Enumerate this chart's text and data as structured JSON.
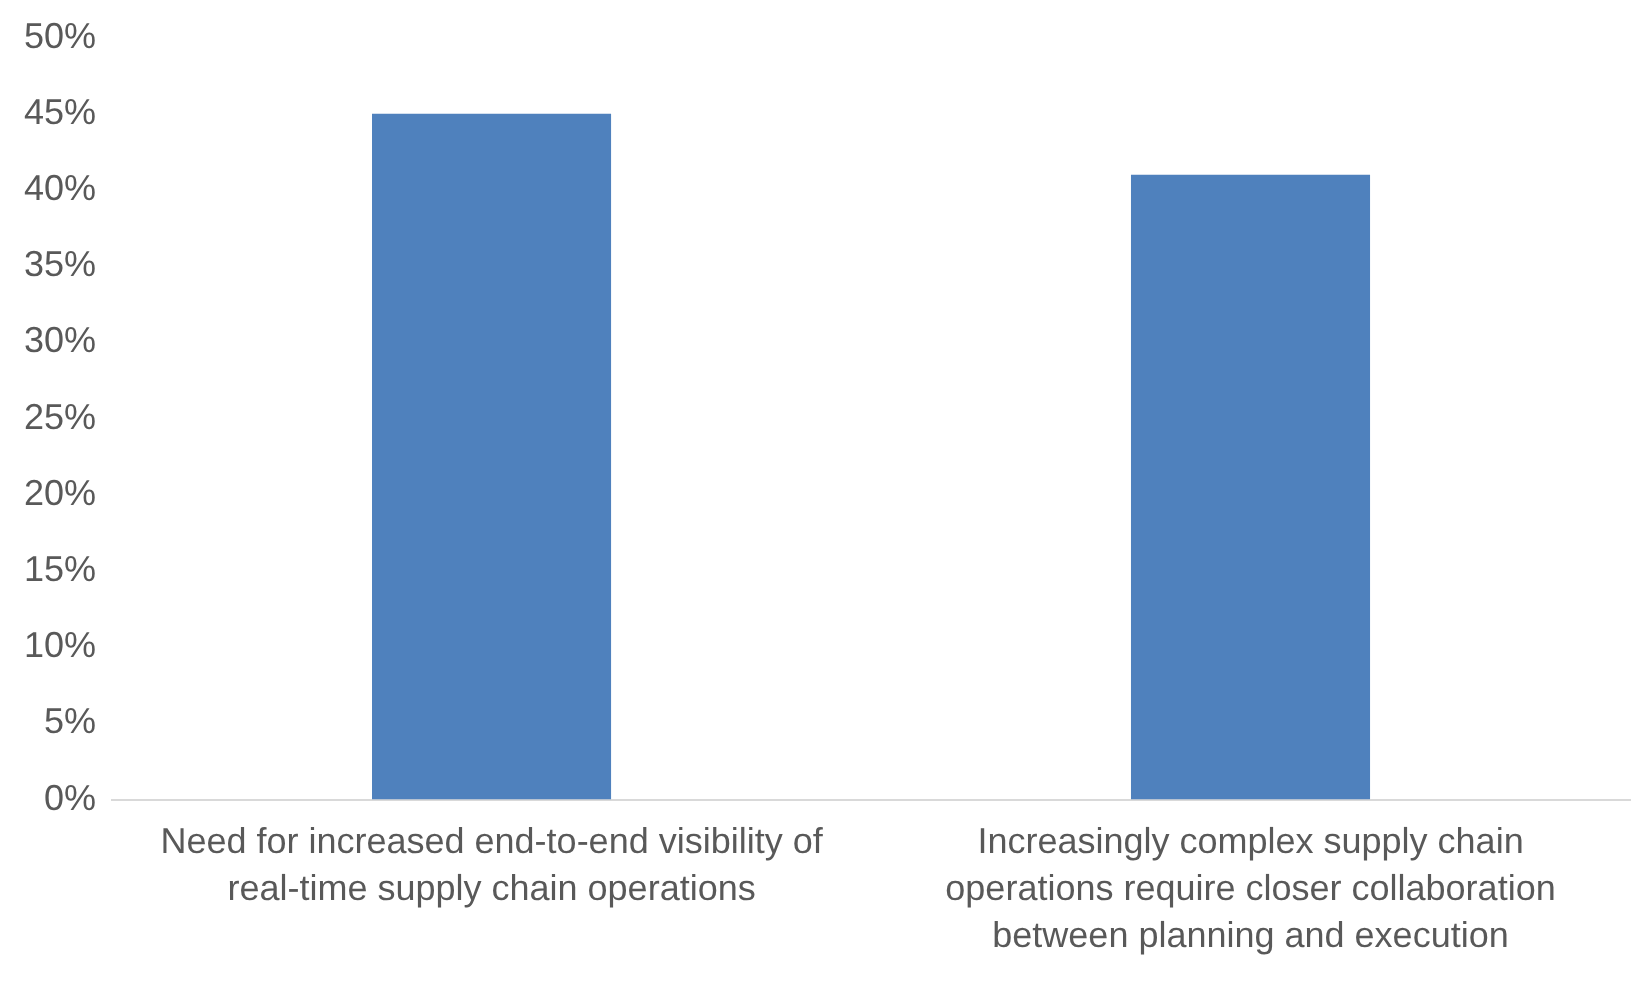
{
  "chart_data": {
    "type": "bar",
    "categories": [
      "Need for increased end-to-end visibility of real-time supply chain operations",
      "Increasingly complex supply chain operations require closer collaboration between planning and execution"
    ],
    "values": [
      45,
      41
    ],
    "color": "#4f81bd",
    "ylim": [
      0,
      50
    ],
    "yticks": [
      {
        "value": 0,
        "label": "0%"
      },
      {
        "value": 5,
        "label": "5%"
      },
      {
        "value": 10,
        "label": "10%"
      },
      {
        "value": 15,
        "label": "15%"
      },
      {
        "value": 20,
        "label": "20%"
      },
      {
        "value": 25,
        "label": "25%"
      },
      {
        "value": 30,
        "label": "30%"
      },
      {
        "value": 35,
        "label": "35%"
      },
      {
        "value": 40,
        "label": "40%"
      },
      {
        "value": 45,
        "label": "45%"
      },
      {
        "value": 50,
        "label": "50%"
      }
    ],
    "grid": false,
    "legend": false
  }
}
